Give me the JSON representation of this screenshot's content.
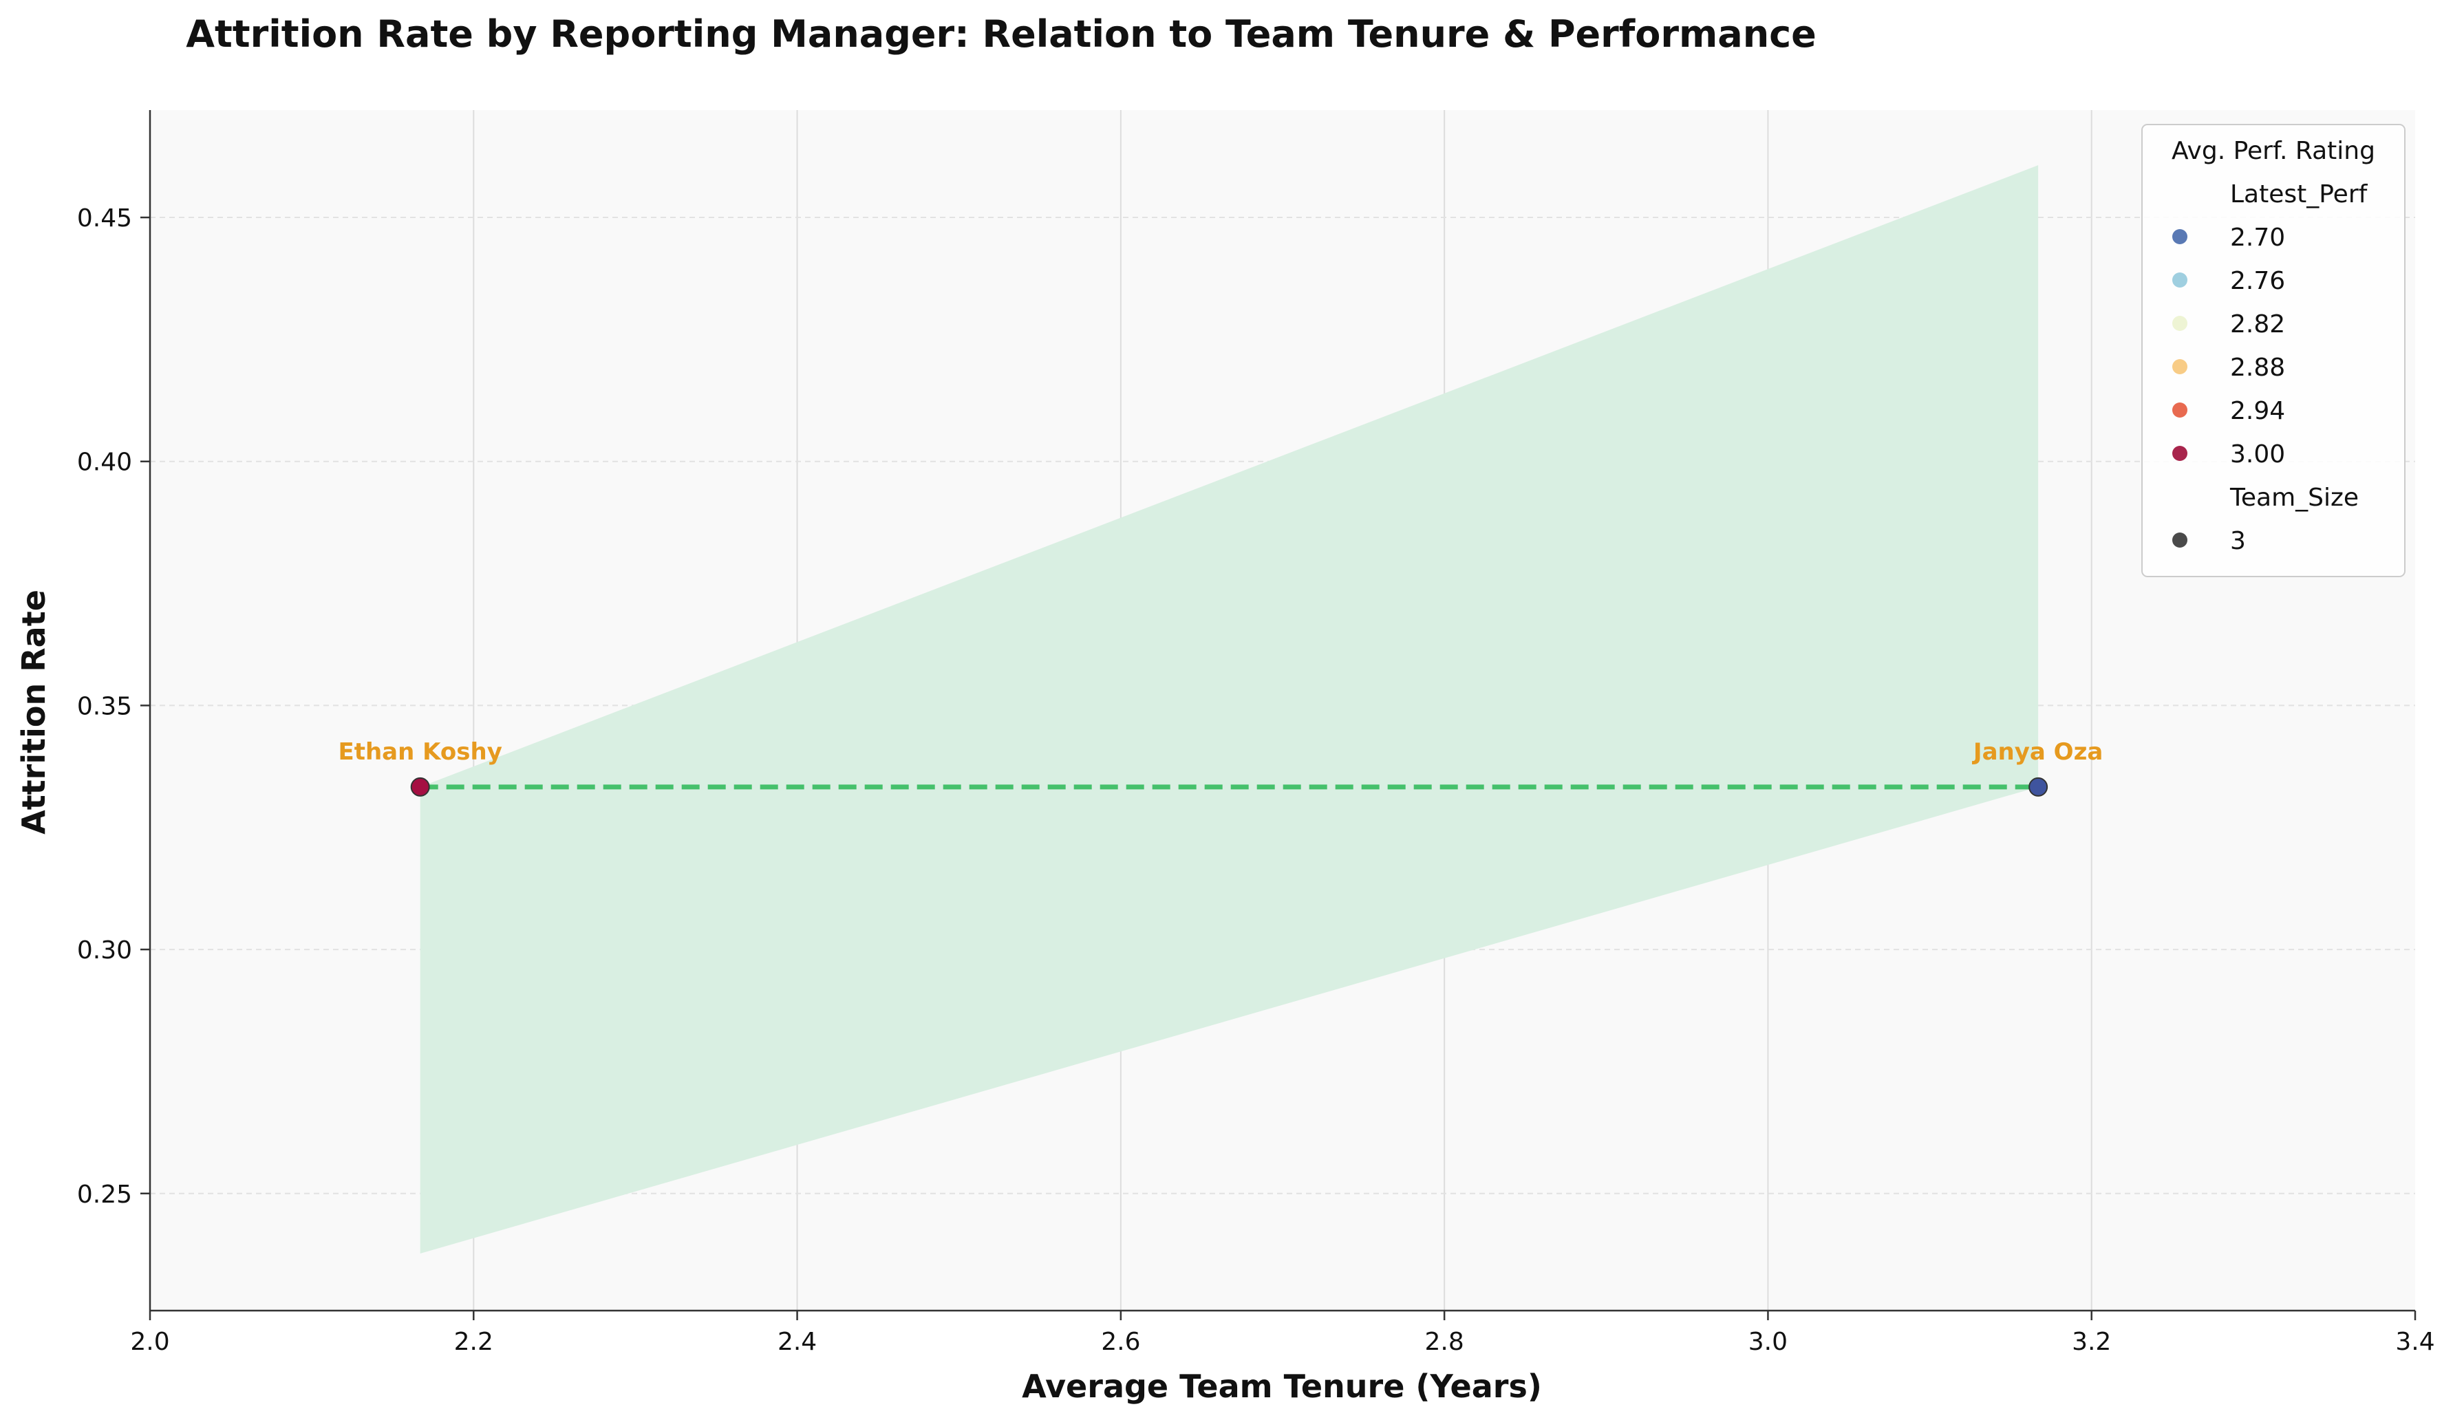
{
  "chart_data": {
    "type": "scatter",
    "title": "Attrition Rate by Reporting Manager: Relation to Team Tenure & Performance",
    "xlabel": "Average Team Tenure (Years)",
    "ylabel": "Attrition Rate",
    "xlim": [
      2.0,
      3.4
    ],
    "ylim": [
      0.226,
      0.472
    ],
    "x_ticks": [
      "2.0",
      "2.2",
      "2.4",
      "2.6",
      "2.8",
      "3.0",
      "3.2",
      "3.4"
    ],
    "y_ticks": [
      "0.25",
      "0.30",
      "0.35",
      "0.40",
      "0.45"
    ],
    "grid": true,
    "points": [
      {
        "label": "Ethan Koshy",
        "x": 2.167,
        "y": 0.3333,
        "perf": 3.0,
        "team_size": 3,
        "color": "#a50f42"
      },
      {
        "label": "Janya Oza",
        "x": 3.167,
        "y": 0.3333,
        "perf": 2.7,
        "team_size": 3,
        "color": "#3f549e"
      }
    ],
    "trend_line": {
      "x": [
        2.167,
        3.167
      ],
      "y": [
        0.3333,
        0.3333
      ],
      "color": "#45c06b",
      "style": "dashed"
    },
    "confidence_band": {
      "x": [
        2.167,
        3.167
      ],
      "lower": [
        0.2377,
        0.3333
      ],
      "upper": [
        0.3333,
        0.4607
      ],
      "color": "#d9efe2"
    },
    "legend": {
      "title": "Avg. Perf. Rating",
      "position": "top-right",
      "entries": [
        {
          "label": "Latest_Perf",
          "type": "header"
        },
        {
          "label": "2.70",
          "color": "#5979b4",
          "type": "marker"
        },
        {
          "label": "2.76",
          "color": "#9fcfe0",
          "type": "marker"
        },
        {
          "label": "2.82",
          "color": "#eef4d4",
          "type": "marker"
        },
        {
          "label": "2.88",
          "color": "#f8cc86",
          "type": "marker"
        },
        {
          "label": "2.94",
          "color": "#e86a50",
          "type": "marker"
        },
        {
          "label": "3.00",
          "color": "#a8254c",
          "type": "marker"
        },
        {
          "label": "Team_Size",
          "type": "header"
        },
        {
          "label": "3",
          "color": "#4a4a4a",
          "type": "marker"
        }
      ]
    },
    "annotation_color": "#e69a1f"
  }
}
